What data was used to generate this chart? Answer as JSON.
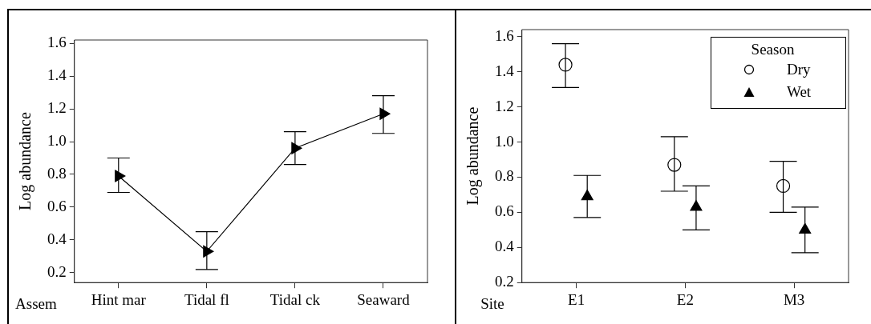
{
  "chart_data": [
    {
      "type": "line",
      "categories": [
        "Hint mar",
        "Tidal fl",
        "Tidal ck",
        "Seaward"
      ],
      "xlabel": "Assem",
      "ylabel": "Log abundance",
      "ylim": [
        0.14,
        1.62
      ],
      "yticks": [
        0.2,
        0.4,
        0.6,
        0.8,
        {
          "value": 1,
          "label": "1.0"
        },
        1.2,
        1.4,
        1.6
      ],
      "marker": "triangle",
      "legend": false,
      "series": [
        {
          "color": "#000000",
          "values": [
            0.79,
            0.33,
            0.96,
            1.17
          ],
          "errors": [
            [
              0.69,
              0.9
            ],
            [
              0.22,
              0.45
            ],
            [
              0.86,
              1.06
            ],
            [
              1.05,
              1.28
            ]
          ]
        }
      ]
    },
    {
      "type": "scatter",
      "categories": [
        "E1",
        "E2",
        "M3"
      ],
      "xlabel": "Site",
      "ylabel": "Log abundance",
      "ylim": [
        0.2,
        1.64
      ],
      "yticks": [
        0.2,
        0.4,
        0.6,
        0.8,
        {
          "value": 1,
          "label": "1.0"
        },
        1.2,
        1.4,
        1.6
      ],
      "legend": "top right",
      "legend_title": "Season",
      "series": [
        {
          "name": "Dry",
          "color": "#000000",
          "marker": "circle",
          "values": [
            1.44,
            0.87,
            0.75
          ],
          "errors": [
            [
              1.31,
              1.56
            ],
            [
              0.72,
              1.03
            ],
            [
              0.6,
              0.89
            ]
          ]
        },
        {
          "name": "Wet",
          "color": "#000000",
          "marker": "triangle",
          "values": [
            0.69,
            0.63,
            0.5
          ],
          "errors": [
            [
              0.57,
              0.81
            ],
            [
              0.5,
              0.75
            ],
            [
              0.37,
              0.63
            ]
          ]
        }
      ]
    }
  ]
}
